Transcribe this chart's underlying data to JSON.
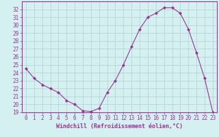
{
  "x": [
    0,
    1,
    2,
    3,
    4,
    5,
    6,
    7,
    8,
    9,
    10,
    11,
    12,
    13,
    14,
    15,
    16,
    17,
    18,
    19,
    20,
    21,
    22,
    23
  ],
  "y": [
    24.5,
    23.3,
    22.5,
    22.0,
    21.5,
    20.5,
    20.0,
    19.2,
    19.1,
    19.5,
    21.5,
    23.0,
    25.0,
    27.3,
    29.5,
    31.0,
    31.5,
    32.2,
    32.2,
    31.5,
    29.5,
    26.5,
    23.3,
    19.0
  ],
  "line_color": "#993399",
  "marker": "D",
  "markersize": 2.0,
  "linewidth": 0.8,
  "xlim": [
    -0.5,
    23.5
  ],
  "ylim": [
    19,
    33
  ],
  "yticks": [
    19,
    20,
    21,
    22,
    23,
    24,
    25,
    26,
    27,
    28,
    29,
    30,
    31,
    32
  ],
  "xticks": [
    0,
    1,
    2,
    3,
    4,
    5,
    6,
    7,
    8,
    9,
    10,
    11,
    12,
    13,
    14,
    15,
    16,
    17,
    18,
    19,
    20,
    21,
    22,
    23
  ],
  "xlabel": "Windchill (Refroidissement éolien,°C)",
  "background_color": "#d4f0f0",
  "grid_color": "#b0d0d0",
  "spine_color": "#993399",
  "tick_labelsize": 5.5,
  "xlabel_fontsize": 6.0
}
